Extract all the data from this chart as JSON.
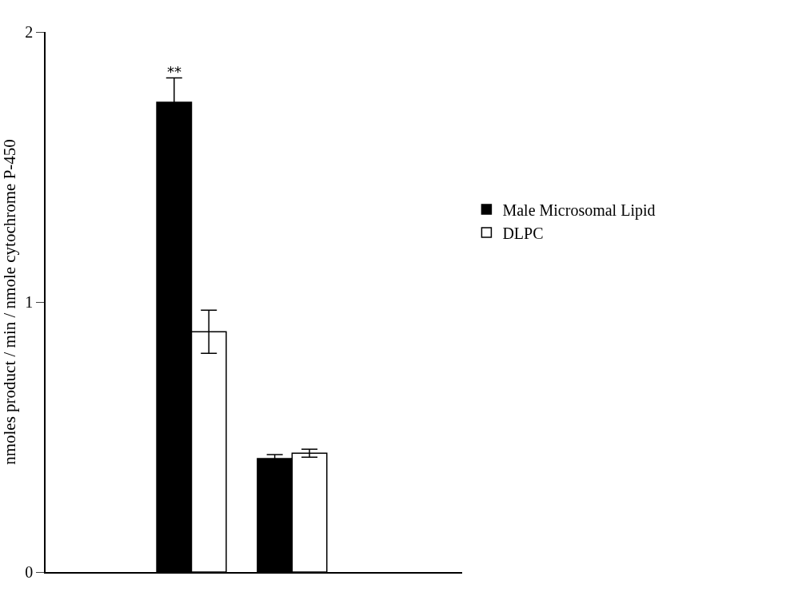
{
  "chart_data": {
    "type": "bar",
    "ylabel": "nmoles product / min / nmole cytochrome P-450",
    "categories": [
      null,
      null
    ],
    "series": [
      {
        "name": "Male Microsomal Lipid",
        "color": "#000000",
        "values": [
          1.74,
          0.42
        ],
        "errors": [
          0.09,
          0.015
        ]
      },
      {
        "name": "DLPC",
        "color": "#ffffff",
        "values": [
          0.89,
          0.44
        ],
        "errors": [
          0.08,
          0.015
        ]
      }
    ],
    "ylim": [
      0,
      2
    ],
    "yticks": [
      0,
      1,
      2
    ],
    "grid": false,
    "legend": "right",
    "annotations": [
      "**"
    ]
  }
}
